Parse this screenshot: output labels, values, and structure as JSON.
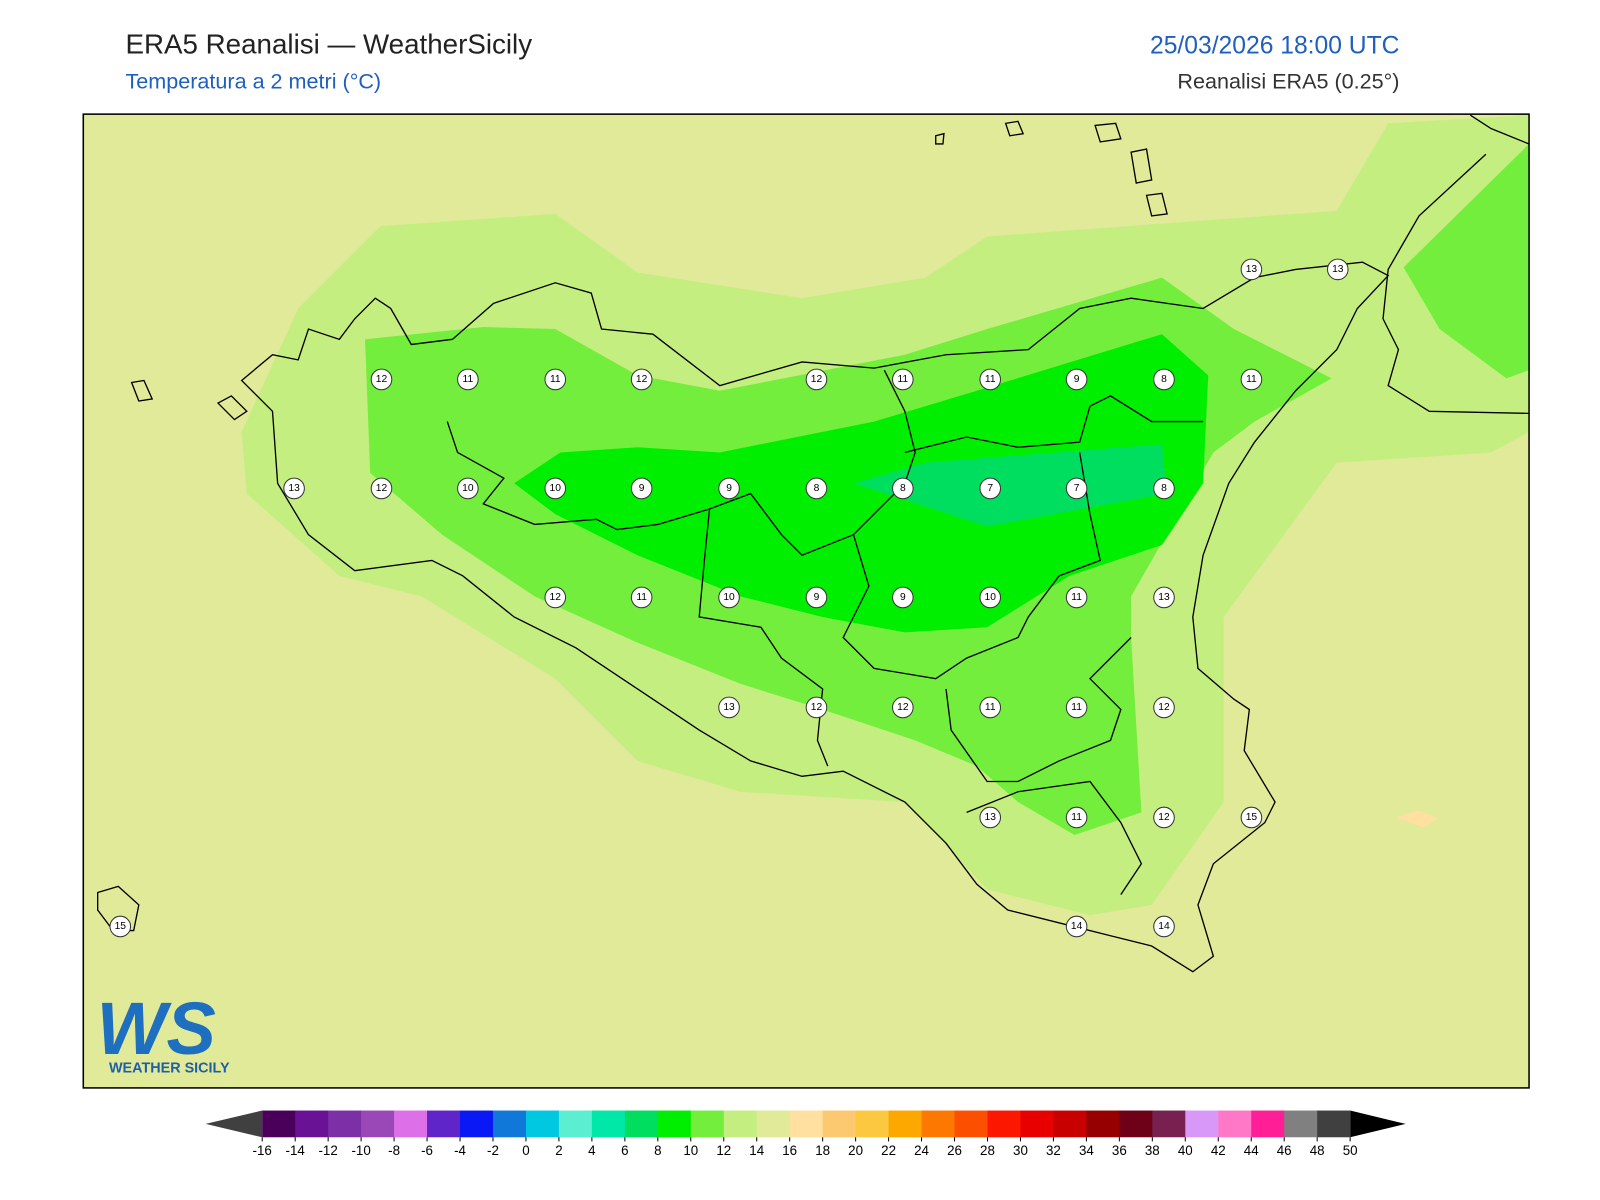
{
  "header": {
    "title": "ERA5 Reanalisi — WeatherSicily",
    "subtitle": "Temperatura a 2 metri (°C)",
    "datetime": "25/03/2026 18:00 UTC",
    "source": "Reanalisi ERA5 (0.25°)"
  },
  "logo": {
    "mark": "WS",
    "text": "WEATHER SICILY"
  },
  "stations": [
    13,
    13,
    12,
    11,
    11,
    12,
    12,
    11,
    11,
    9,
    8,
    11,
    13,
    12,
    10,
    10,
    9,
    9,
    8,
    8,
    7,
    7,
    8,
    12,
    11,
    10,
    9,
    9,
    10,
    11,
    13,
    13,
    12,
    12,
    11,
    11,
    12,
    13,
    11,
    12,
    15,
    15,
    14,
    14
  ],
  "colorbar": {
    "ticks": [
      -16,
      -14,
      -12,
      -10,
      -8,
      -6,
      -4,
      -2,
      0,
      2,
      4,
      6,
      8,
      10,
      12,
      14,
      16,
      18,
      20,
      22,
      24,
      26,
      28,
      30,
      32,
      34,
      36,
      38,
      40,
      42,
      44,
      46,
      48,
      50
    ],
    "colors": [
      "#4a005a",
      "#6a1296",
      "#7d2fa6",
      "#9a48b8",
      "#dd70e8",
      "#5f25c8",
      "#0a18f5",
      "#1078d8",
      "#00c8e0",
      "#5ceed0",
      "#00e8a8",
      "#00de60",
      "#00ee00",
      "#73ee3c",
      "#c4ee80",
      "#e0ea98",
      "#ffe0a0",
      "#fcc870",
      "#fcc840",
      "#fca800",
      "#fc7800",
      "#fc5000",
      "#fc1800",
      "#e80000",
      "#c80000",
      "#960000",
      "#6e0018",
      "#782050",
      "#d898f8",
      "#ff78c8",
      "#ff1e96",
      "#808080",
      "#404040"
    ],
    "under_color": "#404040",
    "over_color": "#000000"
  }
}
